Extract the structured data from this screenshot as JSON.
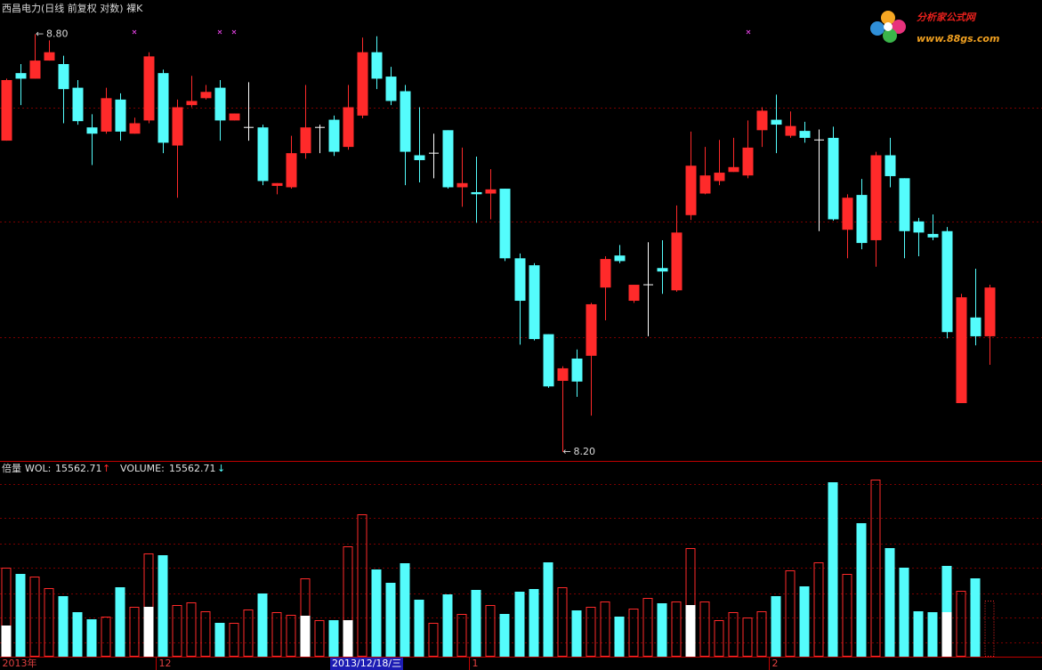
{
  "header": {
    "title": "西昌电力(日线 前复权 对数) 裸K"
  },
  "watermark": {
    "name": "分析家公式网",
    "url": "www.88gs.com"
  },
  "chart_data": [
    {
      "type": "candlestick",
      "categories": [
        "2013年",
        null,
        null,
        null,
        null,
        null,
        null,
        null,
        null,
        null,
        null,
        "12",
        null,
        null,
        null,
        null,
        null,
        null,
        null,
        null,
        null,
        null,
        null,
        null,
        null,
        null,
        null,
        null,
        null,
        null,
        null,
        null,
        null,
        "1",
        null,
        null,
        null,
        null,
        null,
        null,
        null,
        null,
        null,
        null,
        null,
        null,
        null,
        null,
        null,
        null,
        null,
        null,
        null,
        null,
        "2",
        null,
        null,
        null,
        null,
        null,
        null,
        null,
        null,
        null,
        null,
        null,
        null,
        null,
        null,
        null
      ],
      "open": [
        8.647,
        8.744,
        8.736,
        8.762,
        8.757,
        8.723,
        8.666,
        8.66,
        8.706,
        8.657,
        8.676,
        8.744,
        8.64,
        8.698,
        8.708,
        8.723,
        8.676,
        8.666,
        8.666,
        8.582,
        8.58,
        8.629,
        8.666,
        8.677,
        8.638,
        8.683,
        8.774,
        8.739,
        8.718,
        8.626,
        8.629,
        8.662,
        8.58,
        8.573,
        8.571,
        8.578,
        8.478,
        8.468,
        8.369,
        8.302,
        8.334,
        8.338,
        8.436,
        8.482,
        8.417,
        8.44,
        8.464,
        8.432,
        8.54,
        8.571,
        8.589,
        8.602,
        8.597,
        8.662,
        8.677,
        8.654,
        8.661,
        8.648,
        8.651,
        8.519,
        8.569,
        8.504,
        8.626,
        8.593,
        8.531,
        8.513,
        8.517,
        8.27,
        8.393,
        8.366
      ],
      "high": [
        8.736,
        8.757,
        8.8,
        8.791,
        8.769,
        8.734,
        8.685,
        8.723,
        8.715,
        8.68,
        8.774,
        8.749,
        8.706,
        8.74,
        8.727,
        8.734,
        8.686,
        8.731,
        8.67,
        8.586,
        8.654,
        8.727,
        8.67,
        8.683,
        8.727,
        8.795,
        8.797,
        8.753,
        8.727,
        8.695,
        8.657,
        8.662,
        8.637,
        8.624,
        8.606,
        8.578,
        8.485,
        8.471,
        8.369,
        8.323,
        8.347,
        8.414,
        8.481,
        8.497,
        8.44,
        8.501,
        8.504,
        8.554,
        8.66,
        8.638,
        8.648,
        8.651,
        8.676,
        8.695,
        8.713,
        8.689,
        8.674,
        8.663,
        8.667,
        8.57,
        8.592,
        8.631,
        8.651,
        8.593,
        8.536,
        8.541,
        8.523,
        8.427,
        8.463,
        8.44
      ],
      "low": [
        8.647,
        8.698,
        8.736,
        8.762,
        8.672,
        8.67,
        8.612,
        8.657,
        8.647,
        8.657,
        8.672,
        8.629,
        8.565,
        8.695,
        8.706,
        8.647,
        8.676,
        8.647,
        8.583,
        8.57,
        8.578,
        8.621,
        8.629,
        8.625,
        8.634,
        8.679,
        8.721,
        8.698,
        8.583,
        8.587,
        8.593,
        8.578,
        8.552,
        8.529,
        8.534,
        8.474,
        8.354,
        8.36,
        8.292,
        8.2,
        8.279,
        8.252,
        8.389,
        8.471,
        8.414,
        8.366,
        8.427,
        8.43,
        8.533,
        8.57,
        8.583,
        8.602,
        8.593,
        8.638,
        8.629,
        8.651,
        8.644,
        8.517,
        8.532,
        8.478,
        8.491,
        8.466,
        8.58,
        8.478,
        8.481,
        8.504,
        8.363,
        8.27,
        8.353,
        8.325
      ],
      "close": [
        8.734,
        8.736,
        8.762,
        8.774,
        8.721,
        8.675,
        8.657,
        8.708,
        8.66,
        8.672,
        8.768,
        8.644,
        8.695,
        8.704,
        8.717,
        8.676,
        8.686,
        8.666,
        8.589,
        8.586,
        8.629,
        8.666,
        8.666,
        8.631,
        8.695,
        8.774,
        8.736,
        8.704,
        8.631,
        8.619,
        8.629,
        8.58,
        8.586,
        8.57,
        8.577,
        8.478,
        8.417,
        8.362,
        8.294,
        8.32,
        8.301,
        8.412,
        8.477,
        8.474,
        8.44,
        8.44,
        8.459,
        8.515,
        8.611,
        8.597,
        8.601,
        8.609,
        8.637,
        8.69,
        8.67,
        8.668,
        8.651,
        8.648,
        8.534,
        8.565,
        8.5,
        8.626,
        8.596,
        8.517,
        8.515,
        8.508,
        8.372,
        8.422,
        8.366,
        8.436
      ],
      "up_color": "#ff2a2a",
      "down_color": "#54fcfc",
      "doji_color": "#ffffff",
      "ylim": [
        8.187,
        8.826
      ],
      "yticks": [
        8.694,
        8.531,
        8.365
      ],
      "grid": true,
      "extreme_labels": [
        {
          "value": 8.8,
          "label": "8.80"
        },
        {
          "value": 8.2,
          "label": "8.20"
        }
      ],
      "extreme_arrow": "←"
    },
    {
      "type": "bar",
      "title": "倍量",
      "indicators": [
        {
          "name": "WOL:",
          "value": 15562.71,
          "arrow": "↑",
          "color": "#ff2a2a"
        },
        {
          "name": "VOLUME:",
          "value": 15562.71,
          "arrow": "↓",
          "color": "#54fcfc"
        }
      ],
      "series": [
        {
          "values": [
            24700,
            22971,
            22230,
            19019,
            16796,
            12350,
            10374,
            11115,
            19266,
            13832,
            28652,
            28158,
            14326,
            15067,
            12597,
            9386,
            9386,
            13091,
            17537,
            12350,
            11609,
            21736,
            10127,
            10127,
            30628,
            39520,
            24206,
            20501,
            25935,
            15808,
            9386,
            17290,
            11856,
            18525,
            14326,
            11856,
            18031,
            18772,
            26182,
            19266,
            12844,
            13832,
            15314,
            11115,
            13338,
            16302,
            14820,
            15314,
            30134,
            15314,
            10127,
            12350,
            10868,
            12597,
            16796,
            23959,
            19513,
            26182,
            48412,
            22971,
            37050,
            49153,
            30134,
            24700,
            12597,
            12350,
            25194,
            18278,
            21736,
            15562.71
          ],
          "up_color": "#ff2a2a",
          "down_color": "#54fcfc"
        },
        {
          "color": "#ffffff",
          "values": [
            8645,
            null,
            null,
            null,
            null,
            null,
            null,
            null,
            null,
            null,
            13832,
            null,
            null,
            null,
            null,
            null,
            null,
            null,
            null,
            null,
            null,
            11362,
            null,
            null,
            10127,
            null,
            null,
            null,
            null,
            null,
            null,
            null,
            null,
            null,
            null,
            null,
            null,
            null,
            null,
            null,
            null,
            null,
            null,
            null,
            null,
            null,
            null,
            null,
            14326,
            null,
            null,
            null,
            null,
            null,
            null,
            null,
            null,
            null,
            null,
            null,
            null,
            null,
            null,
            null,
            null,
            null,
            12350,
            null,
            null,
            null
          ]
        }
      ],
      "ylim": [
        0,
        53846
      ],
      "yticks": [
        47918,
        38532,
        31369,
        24700,
        17537,
        10868,
        3952
      ],
      "grid": true,
      "cursor_label": "2013/12/18/三"
    }
  ]
}
